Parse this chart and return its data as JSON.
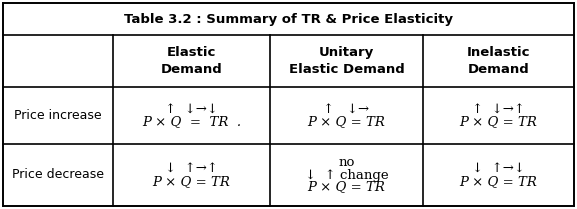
{
  "title": "Table 3.2 : Summary of TR & Price Elasticity",
  "col_headers": [
    "",
    "Elastic\nDemand",
    "Unitary\nElastic Demand",
    "Inelastic\nDemand"
  ],
  "row1_label": "Price increase",
  "row2_label": "Price decrease",
  "cell_elastic_increase_line1": "↑  ↓→↓",
  "cell_elastic_increase_line2": "P × Q  =  TR  .",
  "cell_unitary_increase_line1": "↑   ↓→",
  "cell_unitary_increase_line2": "P × Q = TR",
  "cell_inelastic_increase_line1": "↑  ↓→↑",
  "cell_inelastic_increase_line2": "P × Q = TR",
  "cell_elastic_decrease_line1": "↓  ↑→↑",
  "cell_elastic_decrease_line2": "P × Q = TR",
  "cell_unitary_decrease_line0": "no",
  "cell_unitary_decrease_line1": "↓  ↑ change",
  "cell_unitary_decrease_line2": "P × Q = TR",
  "cell_inelastic_decrease_line1": "↓  ↑→↓",
  "cell_inelastic_decrease_line2": "P × Q = TR",
  "bg_color": "#ffffff",
  "border_color": "#000000",
  "text_color": "#000000",
  "title_fontsize": 9.5,
  "header_fontsize": 9.5,
  "cell_arrow_fontsize": 9.5,
  "cell_eq_fontsize": 9.5,
  "label_fontsize": 9
}
